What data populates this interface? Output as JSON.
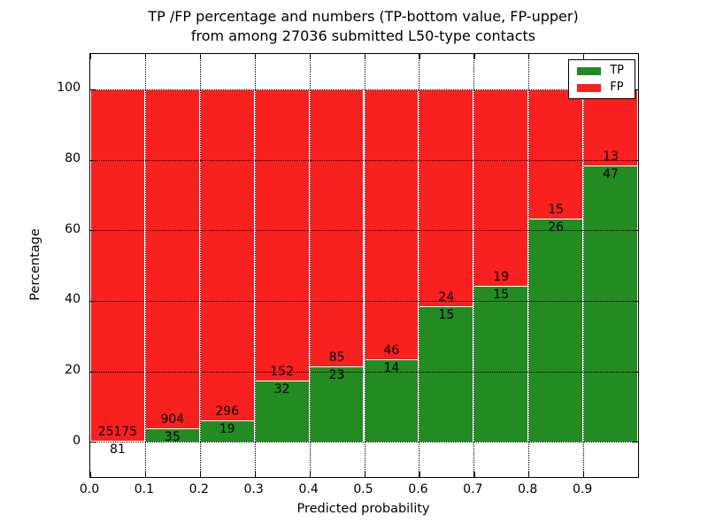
{
  "chart_data": {
    "type": "bar",
    "stacked": true,
    "unit": "percent of bin total",
    "title_line1": "TP /FP percentage and numbers (TP-bottom value, FP-upper)",
    "title_line2": "from among 27036 submitted L50-type contacts",
    "xlabel": "Predicted probability",
    "ylabel": "Percentage",
    "x_tick_labels": [
      "0.0",
      "0.1",
      "0.2",
      "0.3",
      "0.4",
      "0.5",
      "0.6",
      "0.7",
      "0.8",
      "0.9"
    ],
    "y_tick_values": [
      0,
      20,
      40,
      60,
      80,
      100
    ],
    "xlim": [
      0.0,
      1.0
    ],
    "ylim": [
      -10,
      110
    ],
    "grid": "dotted-black-both-axes",
    "bin_width": 0.1,
    "bins": [
      {
        "x_start": 0.0,
        "tp": 81,
        "fp": 25175
      },
      {
        "x_start": 0.1,
        "tp": 35,
        "fp": 904
      },
      {
        "x_start": 0.2,
        "tp": 19,
        "fp": 296
      },
      {
        "x_start": 0.3,
        "tp": 32,
        "fp": 152
      },
      {
        "x_start": 0.4,
        "tp": 23,
        "fp": 85
      },
      {
        "x_start": 0.5,
        "tp": 14,
        "fp": 46
      },
      {
        "x_start": 0.6,
        "tp": 15,
        "fp": 24
      },
      {
        "x_start": 0.7,
        "tp": 15,
        "fp": 19
      },
      {
        "x_start": 0.8,
        "tp": 26,
        "fp": 15
      },
      {
        "x_start": 0.9,
        "tp": 47,
        "fp": 13
      }
    ],
    "legend": {
      "position": "upper-right",
      "entries": [
        {
          "label": "TP",
          "color": "#228b22"
        },
        {
          "label": "FP",
          "color": "#f92020"
        }
      ]
    },
    "colors": {
      "tp": "#228b22",
      "fp": "#f92020",
      "bar_edge": "#ffffff",
      "grid": "#000000",
      "text": "#000000",
      "background": "#ffffff"
    }
  }
}
